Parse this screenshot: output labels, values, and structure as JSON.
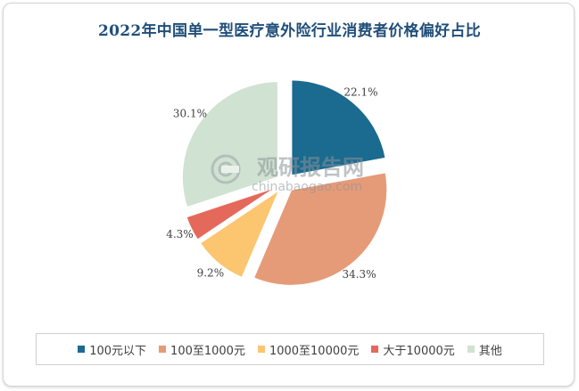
{
  "title": "2022年中国单一型医疗意外险行业消费者价格偏好占比",
  "watermark": {
    "name": "观研报告网",
    "url": "chinabaogao.com"
  },
  "chart_data": {
    "type": "pie",
    "title": "2022年中国单一型医疗意外险行业消费者价格偏好占比",
    "categories": [
      "100元以下",
      "100至1000元",
      "1000至10000元",
      "大于10000元",
      "其他"
    ],
    "values": [
      22.1,
      34.3,
      9.2,
      4.3,
      30.1
    ],
    "labels": [
      "22.1%",
      "34.3%",
      "9.2%",
      "4.3%",
      "30.1%"
    ],
    "colors": [
      "#1b6a8f",
      "#e59b78",
      "#fcc56f",
      "#e5695b",
      "#d0e2d1"
    ],
    "exploded": true,
    "legend_position": "bottom"
  }
}
